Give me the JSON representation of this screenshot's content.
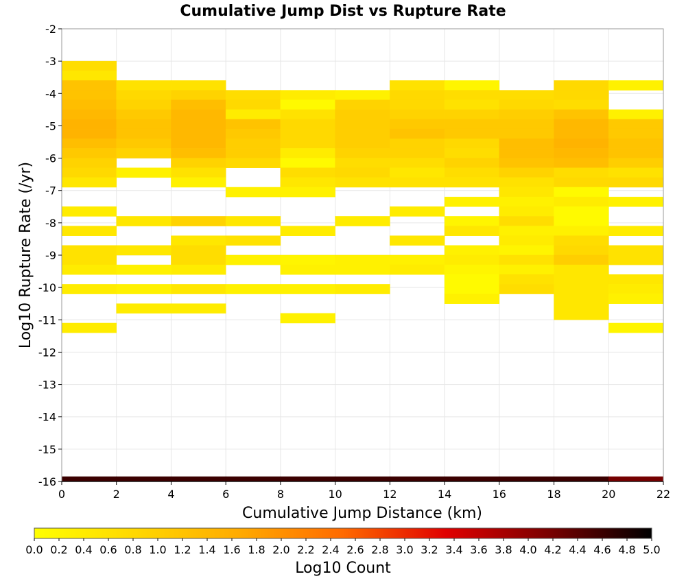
{
  "chart_data": {
    "type": "heatmap",
    "title": "Cumulative Jump Dist vs Rupture Rate",
    "xlabel": "Cumulative Jump Distance (km)",
    "ylabel": "Log10 Rupture Rate (/yr)",
    "colorbar_label": "Log10 Count",
    "xlim": [
      0,
      22
    ],
    "ylim": [
      -16,
      -2
    ],
    "x_ticks": [
      "0",
      "2",
      "4",
      "6",
      "8",
      "10",
      "12",
      "14",
      "16",
      "18",
      "20",
      "22"
    ],
    "y_ticks": [
      "-2",
      "-3",
      "-4",
      "-5",
      "-6",
      "-7",
      "-8",
      "-9",
      "-10",
      "-11",
      "-12",
      "-13",
      "-14",
      "-15",
      "-16"
    ],
    "colorbar_range": [
      0,
      5
    ],
    "colorbar_ticks": [
      "0.0",
      "0.2",
      "0.4",
      "0.6",
      "0.8",
      "1.0",
      "1.2",
      "1.4",
      "1.6",
      "1.8",
      "2.0",
      "2.2",
      "2.4",
      "2.6",
      "2.8",
      "3.0",
      "3.2",
      "3.4",
      "3.6",
      "3.8",
      "4.0",
      "4.2",
      "4.4",
      "4.6",
      "4.8",
      "5.0"
    ],
    "colormap": [
      "#ffff00",
      "#ffd700",
      "#ffaa00",
      "#ff6a00",
      "#e00000",
      "#7a0000",
      "#000000"
    ],
    "grid": true,
    "x_bin_width_km": 2,
    "y_bin_height_log10": 0.3,
    "columns": [
      {
        "x": [
          0,
          2
        ],
        "cells": [
          [
            -3.3,
            -3.0,
            0.7
          ],
          [
            -3.6,
            -3.3,
            0.5
          ],
          [
            -3.9,
            -3.6,
            1.2
          ],
          [
            -4.2,
            -3.9,
            1.2
          ],
          [
            -4.5,
            -4.2,
            1.3
          ],
          [
            -4.8,
            -4.5,
            1.4
          ],
          [
            -5.1,
            -4.8,
            1.5
          ],
          [
            -5.4,
            -5.1,
            1.5
          ],
          [
            -5.7,
            -5.4,
            1.3
          ],
          [
            -6.0,
            -5.7,
            1.1
          ],
          [
            -6.3,
            -6.0,
            0.9
          ],
          [
            -6.6,
            -6.3,
            0.8
          ],
          [
            -6.9,
            -6.6,
            0.5
          ],
          [
            -7.8,
            -7.5,
            0.4
          ],
          [
            -8.4,
            -8.1,
            0.5
          ],
          [
            -9.0,
            -8.7,
            0.6
          ],
          [
            -9.3,
            -9.0,
            0.6
          ],
          [
            -9.6,
            -9.3,
            0.4
          ],
          [
            -10.2,
            -9.9,
            0.4
          ],
          [
            -11.4,
            -11.1,
            0.4
          ],
          [
            -16.0,
            -15.85,
            4.6
          ]
        ]
      },
      {
        "x": [
          2,
          4
        ],
        "cells": [
          [
            -3.9,
            -3.6,
            0.6
          ],
          [
            -4.2,
            -3.9,
            0.8
          ],
          [
            -4.5,
            -4.2,
            0.9
          ],
          [
            -4.8,
            -4.5,
            1.1
          ],
          [
            -5.1,
            -4.8,
            1.2
          ],
          [
            -5.4,
            -5.1,
            1.2
          ],
          [
            -5.7,
            -5.4,
            1.1
          ],
          [
            -6.0,
            -5.7,
            0.9
          ],
          [
            -6.6,
            -6.3,
            0.3
          ],
          [
            -8.1,
            -7.8,
            0.5
          ],
          [
            -9.0,
            -8.7,
            0.5
          ],
          [
            -9.6,
            -9.3,
            0.3
          ],
          [
            -10.2,
            -9.9,
            0.3
          ],
          [
            -10.8,
            -10.5,
            0.4
          ],
          [
            -16.0,
            -15.85,
            4.6
          ]
        ]
      },
      {
        "x": [
          4,
          6
        ],
        "cells": [
          [
            -3.9,
            -3.6,
            0.6
          ],
          [
            -4.2,
            -3.9,
            0.9
          ],
          [
            -4.5,
            -4.2,
            1.3
          ],
          [
            -4.8,
            -4.5,
            1.4
          ],
          [
            -5.1,
            -4.8,
            1.4
          ],
          [
            -5.4,
            -5.1,
            1.4
          ],
          [
            -5.7,
            -5.4,
            1.4
          ],
          [
            -6.0,
            -5.7,
            1.3
          ],
          [
            -6.3,
            -6.0,
            0.9
          ],
          [
            -6.6,
            -6.3,
            0.6
          ],
          [
            -6.9,
            -6.6,
            0.3
          ],
          [
            -8.1,
            -7.8,
            0.9
          ],
          [
            -8.7,
            -8.4,
            0.5
          ],
          [
            -9.0,
            -8.7,
            0.7
          ],
          [
            -9.3,
            -9.0,
            0.7
          ],
          [
            -9.6,
            -9.3,
            0.4
          ],
          [
            -10.2,
            -9.9,
            0.5
          ],
          [
            -10.8,
            -10.5,
            0.4
          ],
          [
            -16.0,
            -15.85,
            4.6
          ]
        ]
      },
      {
        "x": [
          6,
          8
        ],
        "cells": [
          [
            -4.2,
            -3.9,
            0.7
          ],
          [
            -4.5,
            -4.2,
            0.8
          ],
          [
            -4.8,
            -4.5,
            0.4
          ],
          [
            -5.1,
            -4.8,
            1.2
          ],
          [
            -5.4,
            -5.1,
            1.1
          ],
          [
            -5.7,
            -5.4,
            1.0
          ],
          [
            -6.0,
            -5.7,
            1.0
          ],
          [
            -6.3,
            -6.0,
            0.8
          ],
          [
            -7.2,
            -6.9,
            0.3
          ],
          [
            -8.1,
            -7.8,
            0.5
          ],
          [
            -8.7,
            -8.4,
            0.6
          ],
          [
            -9.3,
            -9.0,
            0.3
          ],
          [
            -10.2,
            -9.9,
            0.3
          ],
          [
            -16.0,
            -15.85,
            4.6
          ]
        ]
      },
      {
        "x": [
          8,
          10
        ],
        "cells": [
          [
            -4.2,
            -3.9,
            0.4
          ],
          [
            -4.5,
            -4.2,
            0.1
          ],
          [
            -4.8,
            -4.5,
            0.6
          ],
          [
            -5.1,
            -4.8,
            0.8
          ],
          [
            -5.4,
            -5.1,
            0.8
          ],
          [
            -5.7,
            -5.4,
            0.8
          ],
          [
            -6.0,
            -5.7,
            0.4
          ],
          [
            -6.3,
            -6.0,
            0.1
          ],
          [
            -6.6,
            -6.3,
            0.7
          ],
          [
            -6.9,
            -6.6,
            0.5
          ],
          [
            -7.2,
            -6.9,
            0.3
          ],
          [
            -8.4,
            -8.1,
            0.4
          ],
          [
            -9.3,
            -9.0,
            0.2
          ],
          [
            -9.6,
            -9.3,
            0.3
          ],
          [
            -10.2,
            -9.9,
            0.3
          ],
          [
            -11.1,
            -10.8,
            0.3
          ],
          [
            -16.0,
            -15.85,
            4.6
          ]
        ]
      },
      {
        "x": [
          10,
          12
        ],
        "cells": [
          [
            -4.2,
            -3.9,
            0.3
          ],
          [
            -4.5,
            -4.2,
            0.9
          ],
          [
            -4.8,
            -4.5,
            1.0
          ],
          [
            -5.1,
            -4.8,
            1.0
          ],
          [
            -5.4,
            -5.1,
            1.0
          ],
          [
            -5.7,
            -5.4,
            1.0
          ],
          [
            -6.0,
            -5.7,
            0.9
          ],
          [
            -6.3,
            -6.0,
            0.7
          ],
          [
            -6.6,
            -6.3,
            0.8
          ],
          [
            -6.9,
            -6.6,
            0.6
          ],
          [
            -8.1,
            -7.8,
            0.4
          ],
          [
            -9.3,
            -9.0,
            0.3
          ],
          [
            -9.6,
            -9.3,
            0.3
          ],
          [
            -10.2,
            -9.9,
            0.4
          ],
          [
            -16.0,
            -15.85,
            4.6
          ]
        ]
      },
      {
        "x": [
          12,
          14
        ],
        "cells": [
          [
            -3.9,
            -3.6,
            0.6
          ],
          [
            -4.2,
            -3.9,
            0.8
          ],
          [
            -4.5,
            -4.2,
            0.8
          ],
          [
            -4.8,
            -4.5,
            0.9
          ],
          [
            -5.1,
            -4.8,
            1.1
          ],
          [
            -5.4,
            -5.1,
            1.2
          ],
          [
            -5.7,
            -5.4,
            0.9
          ],
          [
            -6.0,
            -5.7,
            0.9
          ],
          [
            -6.3,
            -6.0,
            0.7
          ],
          [
            -6.6,
            -6.3,
            0.5
          ],
          [
            -6.9,
            -6.6,
            0.6
          ],
          [
            -7.8,
            -7.5,
            0.4
          ],
          [
            -8.7,
            -8.4,
            0.5
          ],
          [
            -9.3,
            -9.0,
            0.3
          ],
          [
            -9.6,
            -9.3,
            0.4
          ],
          [
            -16.0,
            -15.85,
            4.6
          ]
        ]
      },
      {
        "x": [
          14,
          16
        ],
        "cells": [
          [
            -3.9,
            -3.6,
            0.2
          ],
          [
            -4.2,
            -3.9,
            0.7
          ],
          [
            -4.5,
            -4.2,
            0.6
          ],
          [
            -4.8,
            -4.5,
            0.9
          ],
          [
            -5.1,
            -4.8,
            1.1
          ],
          [
            -5.4,
            -5.1,
            1.1
          ],
          [
            -5.7,
            -5.4,
            0.8
          ],
          [
            -6.0,
            -5.7,
            0.7
          ],
          [
            -6.3,
            -6.0,
            0.9
          ],
          [
            -6.6,
            -6.3,
            0.7
          ],
          [
            -6.9,
            -6.6,
            0.6
          ],
          [
            -7.5,
            -7.2,
            0.3
          ],
          [
            -8.1,
            -7.8,
            0.2
          ],
          [
            -8.4,
            -8.1,
            0.5
          ],
          [
            -9.0,
            -8.7,
            0.3
          ],
          [
            -9.3,
            -9.0,
            0.4
          ],
          [
            -9.6,
            -9.3,
            0.2
          ],
          [
            -10.2,
            -9.6,
            0.1
          ],
          [
            -10.5,
            -10.2,
            0.3
          ],
          [
            -16.0,
            -15.85,
            4.6
          ]
        ]
      },
      {
        "x": [
          16,
          18
        ],
        "cells": [
          [
            -4.2,
            -3.9,
            0.7
          ],
          [
            -4.5,
            -4.2,
            0.8
          ],
          [
            -4.8,
            -4.5,
            1.0
          ],
          [
            -5.1,
            -4.8,
            1.1
          ],
          [
            -5.4,
            -5.1,
            1.1
          ],
          [
            -5.7,
            -5.4,
            1.3
          ],
          [
            -6.0,
            -5.7,
            1.3
          ],
          [
            -6.3,
            -6.0,
            1.2
          ],
          [
            -6.6,
            -6.3,
            0.9
          ],
          [
            -6.9,
            -6.6,
            0.6
          ],
          [
            -7.2,
            -6.9,
            0.5
          ],
          [
            -7.5,
            -7.2,
            0.3
          ],
          [
            -7.8,
            -7.5,
            0.4
          ],
          [
            -8.1,
            -7.8,
            0.7
          ],
          [
            -8.4,
            -8.1,
            0.3
          ],
          [
            -8.7,
            -8.4,
            0.4
          ],
          [
            -9.0,
            -8.7,
            0.2
          ],
          [
            -9.3,
            -9.0,
            0.6
          ],
          [
            -9.6,
            -9.3,
            0.3
          ],
          [
            -9.9,
            -9.6,
            0.6
          ],
          [
            -10.2,
            -9.9,
            0.7
          ],
          [
            -16.0,
            -15.85,
            4.6
          ]
        ]
      },
      {
        "x": [
          18,
          20
        ],
        "cells": [
          [
            -3.9,
            -3.6,
            0.8
          ],
          [
            -4.2,
            -3.9,
            0.8
          ],
          [
            -4.5,
            -4.2,
            0.7
          ],
          [
            -4.8,
            -4.5,
            1.2
          ],
          [
            -5.1,
            -4.8,
            1.4
          ],
          [
            -5.4,
            -5.1,
            1.4
          ],
          [
            -5.7,
            -5.4,
            1.5
          ],
          [
            -6.0,
            -5.7,
            1.4
          ],
          [
            -6.3,
            -6.0,
            1.3
          ],
          [
            -6.6,
            -6.3,
            0.7
          ],
          [
            -6.9,
            -6.6,
            0.8
          ],
          [
            -7.2,
            -6.9,
            0.1
          ],
          [
            -7.5,
            -7.2,
            0.4
          ],
          [
            -8.1,
            -7.5,
            0.1
          ],
          [
            -8.4,
            -8.1,
            0.3
          ],
          [
            -8.7,
            -8.4,
            0.7
          ],
          [
            -9.0,
            -8.7,
            0.8
          ],
          [
            -9.3,
            -9.0,
            1.0
          ],
          [
            -9.6,
            -9.3,
            0.5
          ],
          [
            -11.0,
            -9.6,
            0.5
          ],
          [
            -16.0,
            -15.85,
            4.6
          ]
        ]
      },
      {
        "x": [
          20,
          22
        ],
        "cells": [
          [
            -3.9,
            -3.6,
            0.3
          ],
          [
            -4.8,
            -4.5,
            0.3
          ],
          [
            -5.1,
            -4.8,
            1.1
          ],
          [
            -5.4,
            -5.1,
            1.1
          ],
          [
            -5.7,
            -5.4,
            1.2
          ],
          [
            -6.0,
            -5.7,
            1.2
          ],
          [
            -6.3,
            -6.0,
            1.0
          ],
          [
            -6.6,
            -6.3,
            0.6
          ],
          [
            -6.9,
            -6.6,
            0.8
          ],
          [
            -7.5,
            -7.2,
            0.3
          ],
          [
            -8.4,
            -8.1,
            0.4
          ],
          [
            -9.0,
            -8.7,
            0.6
          ],
          [
            -9.3,
            -9.0,
            0.6
          ],
          [
            -9.9,
            -9.6,
            0.5
          ],
          [
            -10.2,
            -9.9,
            0.4
          ],
          [
            -10.5,
            -10.2,
            0.3
          ],
          [
            -11.4,
            -11.1,
            0.2
          ],
          [
            -16.0,
            -15.85,
            4.2
          ]
        ]
      }
    ]
  }
}
